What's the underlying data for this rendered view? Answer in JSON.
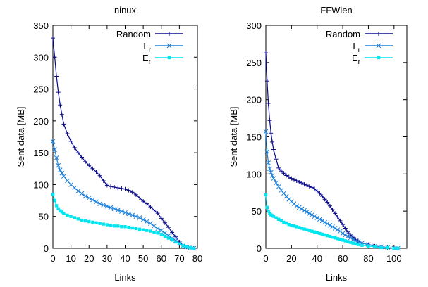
{
  "chart_data": [
    {
      "type": "line",
      "title": "ninux",
      "xlabel": "Links",
      "ylabel": "Sent data [MB]",
      "xlim": [
        0,
        80
      ],
      "ylim": [
        0,
        350
      ],
      "xticks": [
        "0",
        "10",
        "20",
        "30",
        "40",
        "50",
        "60",
        "70",
        "80"
      ],
      "yticks": [
        "0",
        "50",
        "100",
        "150",
        "200",
        "250",
        "300",
        "350"
      ],
      "legend_position": "top-right",
      "series": [
        {
          "name": "Random",
          "sub": "",
          "color": "#0a0a8c",
          "marker": "plus",
          "x": [
            0,
            1,
            2,
            3,
            4,
            5,
            6,
            8,
            10,
            12,
            14,
            16,
            18,
            20,
            22,
            24,
            26,
            28,
            30,
            32,
            34,
            36,
            38,
            40,
            42,
            44,
            46,
            48,
            50,
            52,
            54,
            56,
            58,
            60,
            62,
            64,
            66,
            68,
            70,
            72,
            74,
            76,
            78
          ],
          "y": [
            330,
            300,
            270,
            245,
            225,
            210,
            195,
            180,
            168,
            158,
            150,
            143,
            136,
            130,
            125,
            120,
            114,
            106,
            99,
            97,
            96,
            95,
            94,
            93,
            91,
            88,
            84,
            79,
            74,
            70,
            65,
            60,
            55,
            47,
            40,
            33,
            25,
            18,
            10,
            5,
            2,
            1,
            0
          ]
        },
        {
          "name": "L",
          "sub": "r",
          "color": "#1e82dc",
          "marker": "cross",
          "x": [
            0,
            1,
            2,
            3,
            4,
            5,
            6,
            8,
            10,
            12,
            14,
            16,
            18,
            20,
            22,
            24,
            26,
            28,
            30,
            32,
            34,
            36,
            38,
            40,
            42,
            44,
            46,
            48,
            50,
            52,
            54,
            56,
            58,
            60,
            62,
            64,
            66,
            68,
            70,
            72,
            74,
            76,
            78
          ],
          "y": [
            168,
            155,
            142,
            130,
            123,
            118,
            113,
            106,
            100,
            95,
            90,
            86,
            82,
            79,
            76,
            73,
            70,
            68,
            66,
            64,
            62,
            60,
            58,
            56,
            54,
            52,
            50,
            48,
            45,
            42,
            39,
            35,
            31,
            28,
            24,
            20,
            16,
            12,
            8,
            4,
            2,
            1,
            0
          ]
        },
        {
          "name": "E",
          "sub": "r",
          "color": "#00e6f0",
          "marker": "square",
          "x": [
            0,
            1,
            2,
            3,
            4,
            5,
            6,
            8,
            10,
            12,
            14,
            16,
            18,
            20,
            22,
            24,
            26,
            28,
            30,
            32,
            34,
            36,
            38,
            40,
            42,
            44,
            46,
            48,
            50,
            52,
            54,
            56,
            58,
            60,
            62,
            64,
            66,
            68,
            70,
            72,
            74,
            76,
            78
          ],
          "y": [
            85,
            75,
            67,
            62,
            59,
            57,
            55,
            52,
            50,
            48,
            46,
            44,
            43,
            42,
            41,
            40,
            39,
            38,
            37,
            36,
            35,
            35,
            34,
            34,
            33,
            32,
            31,
            30,
            29,
            28,
            27,
            25,
            24,
            22,
            19,
            16,
            13,
            10,
            7,
            4,
            2,
            1,
            0
          ]
        }
      ]
    },
    {
      "type": "line",
      "title": "FFWien",
      "xlabel": "Links",
      "ylabel": "Sent data [MB]",
      "xlim": [
        0,
        110
      ],
      "ylim": [
        0,
        300
      ],
      "xticks": [
        "0",
        "20",
        "40",
        "60",
        "80",
        "100"
      ],
      "yticks": [
        "0",
        "50",
        "100",
        "150",
        "200",
        "250",
        "300"
      ],
      "legend_position": "top-right",
      "series": [
        {
          "name": "Random",
          "sub": "",
          "color": "#0a0a8c",
          "marker": "plus",
          "x": [
            0,
            1,
            2,
            3,
            4,
            5,
            6,
            8,
            10,
            12,
            14,
            16,
            18,
            20,
            22,
            24,
            26,
            28,
            30,
            32,
            34,
            36,
            38,
            40,
            42,
            44,
            46,
            48,
            50,
            52,
            54,
            56,
            58,
            60,
            62,
            64,
            66,
            68,
            70,
            72,
            75,
            80,
            85,
            90,
            95,
            100,
            103
          ],
          "y": [
            263,
            225,
            195,
            172,
            155,
            143,
            133,
            120,
            108,
            104,
            101,
            98,
            96,
            94,
            92,
            91,
            89,
            88,
            86,
            85,
            83,
            82,
            80,
            77,
            74,
            70,
            66,
            62,
            57,
            52,
            47,
            42,
            37,
            32,
            27,
            22,
            18,
            15,
            12,
            10,
            7,
            5,
            3,
            2,
            1,
            0,
            0
          ]
        },
        {
          "name": "L",
          "sub": "r",
          "color": "#1e82dc",
          "marker": "cross",
          "x": [
            0,
            1,
            2,
            3,
            4,
            5,
            6,
            8,
            10,
            12,
            14,
            16,
            18,
            20,
            22,
            24,
            26,
            28,
            30,
            32,
            34,
            36,
            38,
            40,
            42,
            44,
            46,
            48,
            50,
            52,
            54,
            56,
            58,
            60,
            62,
            64,
            66,
            68,
            70,
            72,
            75,
            80,
            85,
            90,
            95,
            100,
            103
          ],
          "y": [
            157,
            130,
            115,
            107,
            102,
            98,
            94,
            88,
            83,
            78,
            74,
            70,
            66,
            63,
            60,
            57,
            55,
            53,
            51,
            49,
            47,
            45,
            43,
            41,
            39,
            37,
            35,
            33,
            31,
            29,
            27,
            25,
            23,
            20,
            18,
            16,
            14,
            12,
            10,
            9,
            7,
            5,
            3,
            2,
            1,
            0,
            0
          ]
        },
        {
          "name": "E",
          "sub": "r",
          "color": "#00e6f0",
          "marker": "square",
          "x": [
            0,
            1,
            2,
            3,
            4,
            5,
            6,
            8,
            10,
            12,
            14,
            16,
            18,
            20,
            22,
            24,
            26,
            28,
            30,
            32,
            34,
            36,
            38,
            40,
            42,
            44,
            46,
            48,
            50,
            52,
            54,
            56,
            58,
            60,
            62,
            64,
            66,
            68,
            70,
            72,
            75,
            80,
            85,
            90,
            95,
            100,
            103
          ],
          "y": [
            72,
            55,
            50,
            47,
            45,
            44,
            43,
            41,
            39,
            37,
            35,
            34,
            32,
            31,
            30,
            29,
            28,
            27,
            26,
            25,
            24,
            23,
            22,
            21,
            20,
            19,
            18,
            17,
            16,
            15,
            14,
            13,
            12,
            11,
            10,
            9,
            8,
            7,
            6,
            5,
            4,
            3,
            2,
            1,
            1,
            0,
            0
          ]
        }
      ]
    }
  ]
}
